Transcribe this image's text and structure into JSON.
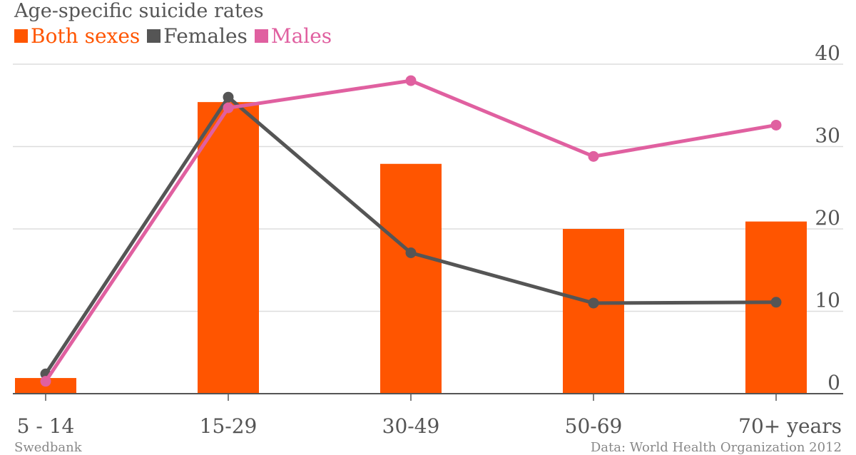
{
  "chart_data": {
    "type": "bar",
    "title": "Age-specific suicide rates",
    "categories": [
      "5 - 14",
      "15-29",
      "30-49",
      "50-69",
      "70+ years"
    ],
    "series": [
      {
        "name": "Both sexes",
        "type": "bar",
        "color": "#ff5500",
        "values": [
          1.9,
          35.4,
          27.9,
          20.0,
          20.9
        ]
      },
      {
        "name": "Females",
        "type": "line",
        "color": "#555555",
        "values": [
          2.4,
          36.0,
          17.1,
          11.0,
          11.1
        ]
      },
      {
        "name": "Males",
        "type": "line",
        "color": "#e060a0",
        "values": [
          1.5,
          34.7,
          38.0,
          28.8,
          32.6
        ]
      }
    ],
    "yaxis": {
      "position": "right",
      "ticks": [
        0,
        10,
        20,
        30,
        40
      ]
    },
    "ylim": [
      0,
      40
    ],
    "grid": true,
    "legend": "top-left",
    "source_left": "Swedbank",
    "source_right": "Data: World Health Organization 2012"
  }
}
